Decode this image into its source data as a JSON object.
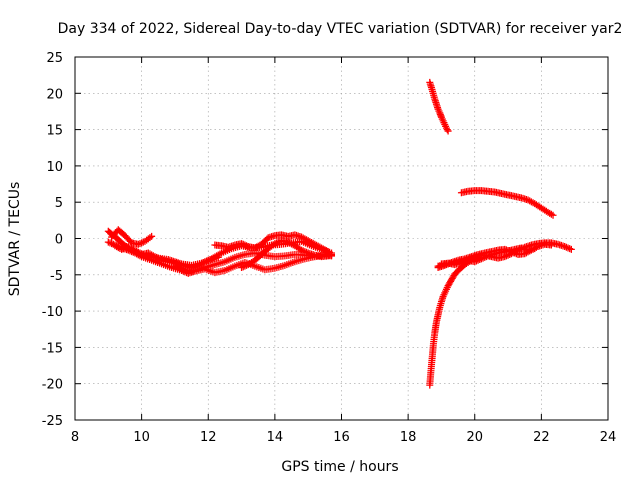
{
  "chart_data": {
    "type": "scatter",
    "title": "Day 334 of 2022, Sidereal Day-to-day VTEC variation (SDTVAR) for receiver yar2",
    "xlabel": "GPS time / hours",
    "ylabel": "SDTVAR / TECUs",
    "xlim": [
      8,
      24
    ],
    "ylim": [
      -25,
      25
    ],
    "xticks": [
      "8",
      "10",
      "12",
      "14",
      "16",
      "18",
      "20",
      "22",
      "24"
    ],
    "yticks": [
      "25",
      "20",
      "15",
      "10",
      "5",
      "0",
      "-5",
      "-10",
      "-15",
      "-20",
      "-25"
    ],
    "grid": true,
    "marker": "+",
    "color": "#ff0000",
    "series": [
      {
        "segments": [
          {
            "x": [
              9.0,
              9.1,
              9.2,
              9.3,
              9.4,
              9.5,
              9.7,
              9.9,
              10.1,
              10.3,
              10.5,
              10.8,
              11.0,
              11.2,
              11.5,
              11.8,
              12.0,
              12.3
            ],
            "y": [
              1.0,
              0.6,
              0.3,
              -0.2,
              -0.6,
              -1.0,
              -1.4,
              -1.9,
              -2.3,
              -2.6,
              -2.7,
              -2.9,
              -3.2,
              -3.5,
              -3.7,
              -3.4,
              -3.0,
              -2.6
            ]
          },
          {
            "x": [
              9.0,
              9.2,
              9.4,
              9.6,
              9.8,
              10.0,
              10.3,
              10.6,
              10.9,
              11.2,
              11.4,
              11.6,
              11.9,
              12.2,
              12.5,
              12.8,
              13.1,
              13.4,
              13.7,
              14.0,
              14.3,
              14.6,
              14.9,
              15.2,
              15.5,
              15.7
            ],
            "y": [
              -0.5,
              -0.9,
              -1.3,
              -1.6,
              -2.0,
              -2.5,
              -3.0,
              -3.5,
              -4.0,
              -4.4,
              -4.8,
              -4.5,
              -4.0,
              -3.6,
              -3.2,
              -2.6,
              -2.2,
              -2.0,
              -2.3,
              -2.5,
              -2.4,
              -2.2,
              -2.3,
              -2.5,
              -2.3,
              -2.4
            ]
          },
          {
            "x": [
              9.1,
              9.3,
              9.5,
              9.7,
              9.9,
              10.1,
              10.3
            ],
            "y": [
              0.2,
              1.2,
              0.4,
              -0.6,
              -0.8,
              -0.4,
              0.3
            ]
          },
          {
            "x": [
              9.2,
              9.4,
              9.6,
              9.8,
              10.0,
              10.2,
              10.4,
              10.6,
              10.9,
              11.2,
              11.5,
              11.8,
              12.1,
              12.4,
              12.7,
              13.0,
              13.3,
              13.6,
              13.9,
              14.2,
              14.5,
              14.8,
              15.1,
              15.4,
              15.7
            ],
            "y": [
              -1.0,
              -1.5,
              -1.2,
              -1.8,
              -2.2,
              -2.0,
              -2.5,
              -2.9,
              -3.3,
              -3.6,
              -4.0,
              -3.5,
              -2.8,
              -2.0,
              -1.4,
              -1.0,
              -1.3,
              -1.2,
              -0.9,
              -0.8,
              -0.6,
              -0.4,
              -1.0,
              -1.5,
              -2.0
            ]
          },
          {
            "x": [
              11.0,
              11.3,
              11.6,
              11.9,
              12.2,
              12.5,
              12.8,
              13.1,
              13.4,
              13.7,
              14.0,
              14.3,
              14.6,
              14.9,
              15.2,
              15.5,
              15.7
            ],
            "y": [
              -3.8,
              -4.4,
              -4.5,
              -4.2,
              -4.7,
              -4.4,
              -3.8,
              -3.3,
              -3.8,
              -4.3,
              -4.1,
              -3.7,
              -3.2,
              -2.8,
              -2.5,
              -2.2,
              -2.3
            ]
          },
          {
            "x": [
              12.2,
              12.4,
              12.6,
              12.8,
              13.0,
              13.2,
              13.4,
              13.6,
              13.8,
              14.0,
              14.2,
              14.4,
              14.6,
              14.8,
              15.0,
              15.2,
              15.4,
              15.6
            ],
            "y": [
              -0.9,
              -1.0,
              -1.2,
              -0.9,
              -0.7,
              -1.1,
              -1.3,
              -0.8,
              0.1,
              0.4,
              0.5,
              0.3,
              0.5,
              0.2,
              -0.3,
              -0.8,
              -1.3,
              -1.8
            ]
          },
          {
            "x": [
              13.0,
              13.2,
              13.4,
              13.6,
              13.8,
              14.0,
              14.2,
              14.4,
              14.6,
              14.8,
              15.0,
              15.2,
              15.4,
              15.6,
              15.7
            ],
            "y": [
              -4.0,
              -3.6,
              -3.0,
              -2.2,
              -1.4,
              -0.7,
              -0.3,
              -0.5,
              -1.0,
              -1.6,
              -2.0,
              -2.3,
              -2.5,
              -2.4,
              -2.2
            ]
          },
          {
            "x": [
              18.65,
              18.7,
              18.75,
              18.8,
              18.85,
              18.9,
              18.95,
              19.0,
              19.05,
              19.1,
              19.15,
              19.2
            ],
            "y": [
              21.5,
              20.8,
              20.0,
              19.2,
              18.5,
              17.8,
              17.3,
              16.7,
              16.2,
              15.7,
              15.2,
              14.8
            ]
          },
          {
            "x": [
              19.6,
              19.8,
              20.0,
              20.2,
              20.4,
              20.6,
              20.8,
              21.0,
              21.2,
              21.4,
              21.6,
              21.8,
              22.0,
              22.2,
              22.35
            ],
            "y": [
              6.3,
              6.5,
              6.6,
              6.6,
              6.5,
              6.4,
              6.2,
              6.0,
              5.8,
              5.6,
              5.3,
              4.8,
              4.2,
              3.6,
              3.2
            ]
          },
          {
            "x": [
              18.65,
              18.68,
              18.72,
              18.76,
              18.8,
              18.85,
              18.9,
              18.95,
              19.0,
              19.05,
              19.1,
              19.2,
              19.3,
              19.4,
              19.55,
              19.7,
              19.9,
              20.1
            ],
            "y": [
              -20.2,
              -18.5,
              -16.5,
              -14.5,
              -13.0,
              -11.5,
              -10.5,
              -9.5,
              -8.7,
              -8.0,
              -7.5,
              -6.5,
              -5.7,
              -4.9,
              -4.2,
              -3.6,
              -3.0,
              -2.6
            ]
          },
          {
            "x": [
              18.9,
              19.1,
              19.3,
              19.5,
              19.7,
              19.9,
              20.1,
              20.3,
              20.5,
              20.7,
              20.9,
              21.1,
              21.3,
              21.5,
              21.7,
              21.9,
              22.1,
              22.3,
              22.5,
              22.7,
              22.9
            ],
            "y": [
              -3.8,
              -3.6,
              -3.4,
              -3.2,
              -3.0,
              -2.6,
              -2.4,
              -2.3,
              -2.5,
              -2.7,
              -2.5,
              -2.1,
              -1.6,
              -1.2,
              -0.9,
              -0.7,
              -0.6,
              -0.6,
              -0.8,
              -1.1,
              -1.5
            ]
          },
          {
            "x": [
              18.9,
              19.1,
              19.3,
              19.5,
              19.7,
              19.9,
              20.1,
              20.3,
              20.5,
              20.7,
              20.9,
              21.1,
              21.3,
              21.5,
              21.7,
              21.9,
              22.1,
              22.3
            ],
            "y": [
              -4.0,
              -3.7,
              -3.3,
              -3.0,
              -2.8,
              -2.5,
              -2.2,
              -2.0,
              -1.8,
              -1.6,
              -1.5,
              -1.8,
              -2.2,
              -2.1,
              -1.6,
              -1.1,
              -0.8,
              -0.9
            ]
          },
          {
            "x": [
              19.0,
              19.2,
              19.4,
              19.6,
              19.8,
              20.0,
              20.2,
              20.4,
              20.6,
              20.8,
              21.0,
              21.2,
              21.4,
              21.6,
              21.8
            ],
            "y": [
              -3.5,
              -3.4,
              -3.6,
              -3.3,
              -3.0,
              -3.2,
              -2.8,
              -2.4,
              -2.1,
              -1.9,
              -1.7,
              -1.5,
              -1.3,
              -1.6,
              -1.4
            ]
          }
        ]
      }
    ]
  }
}
